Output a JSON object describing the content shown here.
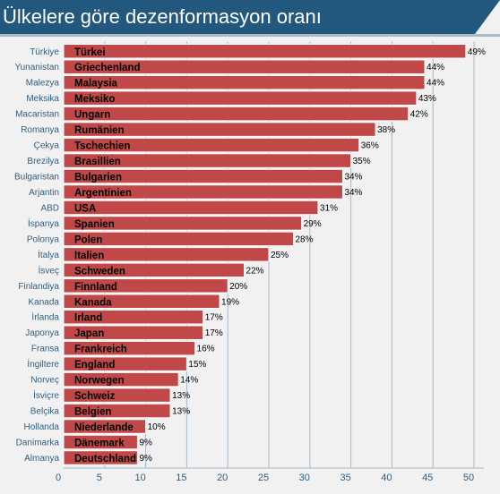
{
  "title": "Ülkelere göre dezenformasyon oranı",
  "colors": {
    "header_bg": "#22587e",
    "bar_fill": "#c04848",
    "bar_stroke": "#ffffff",
    "grid": "#a7b8c7",
    "category_text": "#2e5f83",
    "axis_text": "#2e5f83",
    "plot_bg": "#f1f1f1"
  },
  "chart_data": {
    "type": "bar",
    "orientation": "horizontal",
    "title": "Ülkelere göre dezenformasyon oranı",
    "xlabel": "",
    "ylabel": "",
    "xlim": [
      0,
      50
    ],
    "x_ticks": [
      "0",
      "5",
      "10",
      "15",
      "20",
      "25",
      "30",
      "35",
      "40",
      "45",
      "50"
    ],
    "grid": "vertical",
    "categories": [
      "Türkiye",
      "Yunanistan",
      "Malezya",
      "Meksika",
      "Macaristan",
      "Romanya",
      "Çekya",
      "Brezilya",
      "Bulgaristan",
      "Arjantin",
      "ABD",
      "İspanya",
      "Polonya",
      "İtalya",
      "İsveç",
      "Finlandiya",
      "Kanada",
      "İrlanda",
      "Japonya",
      "Fransa",
      "İngiltere",
      "Norveç",
      "İsviçre",
      "Belçika",
      "Hollanda",
      "Danimarka",
      "Almanya"
    ],
    "bar_labels": [
      "Türkei",
      "Griechenland",
      "Malaysia",
      "Meksiko",
      "Ungarn",
      "Rumänien",
      "Tschechien",
      "Brasillien",
      "Bulgarien",
      "Argentinien",
      "USA",
      "Spanien",
      "Polen",
      "Italien",
      "Schweden",
      "Finnland",
      "Kanada",
      "Irland",
      "Japan",
      "Frankreich",
      "England",
      "Norwegen",
      "Schweiz",
      "Belgien",
      "Niederlande",
      "Dänemark",
      "Deutschland"
    ],
    "values": [
      49,
      44,
      44,
      43,
      42,
      38,
      36,
      35,
      34,
      34,
      31,
      29,
      28,
      25,
      22,
      20,
      19,
      17,
      17,
      16,
      15,
      14,
      13,
      13,
      10,
      9,
      9
    ],
    "value_labels": [
      "49%",
      "44%",
      "44%",
      "43%",
      "42%",
      "38%",
      "36%",
      "35%",
      "34%",
      "34%",
      "31%",
      "29%",
      "28%",
      "25%",
      "22%",
      "20%",
      "19%",
      "17%",
      "17%",
      "16%",
      "15%",
      "14%",
      "13%",
      "13%",
      "10%",
      "9%",
      "9%"
    ]
  }
}
